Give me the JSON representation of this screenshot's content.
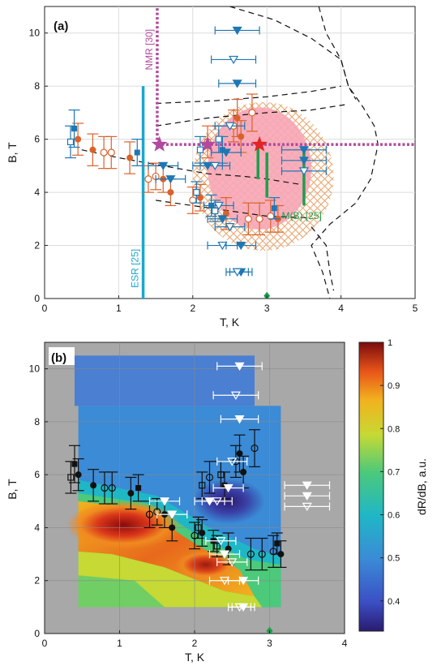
{
  "colors": {
    "orange": "#d9622b",
    "blue": "#1f77b4",
    "teal": "#19a8cf",
    "magenta": "#b04a9f",
    "red": "#e02525",
    "green": "#1e9e4f",
    "pink": "#f7a6b6",
    "hatch": "#e8a46a",
    "gray_bg": "#a8a8a8"
  },
  "chart_data": [
    {
      "type": "scatter",
      "panel_label": "(a)",
      "xlabel": "T, K",
      "ylabel": "B, T",
      "xlim": [
        0,
        5
      ],
      "ylim": [
        0,
        11
      ],
      "xticks": [
        "0",
        "1",
        "2",
        "3",
        "4",
        "5"
      ],
      "yticks": [
        "0",
        "2",
        "4",
        "6",
        "8",
        "10"
      ],
      "grid": true,
      "annotations": {
        "nmr": "NMR [30]",
        "esr": "ESR [25]",
        "mb": "M(B) [25]"
      },
      "series": [
        {
          "kind": "orange-filled-circles",
          "points": [
            {
              "x": 0.45,
              "y": 6.0,
              "err": 0.6
            },
            {
              "x": 0.65,
              "y": 5.6,
              "err": 0.6
            },
            {
              "x": 1.15,
              "y": 5.3,
              "err": 0.6
            },
            {
              "x": 1.6,
              "y": 4.5,
              "err": 0.5
            },
            {
              "x": 2.1,
              "y": 3.8,
              "err": 0.5
            },
            {
              "x": 1.7,
              "y": 4.0,
              "err": 0.5
            },
            {
              "x": 2.6,
              "y": 6.8,
              "err": 0.7
            },
            {
              "x": 2.65,
              "y": 6.1,
              "err": 0.6
            },
            {
              "x": 2.45,
              "y": 3.2,
              "err": 0.6
            },
            {
              "x": 3.15,
              "y": 3.0,
              "err": 0.5
            }
          ]
        },
        {
          "kind": "orange-open-circles",
          "points": [
            {
              "x": 0.9,
              "y": 5.5,
              "err": 0.6
            },
            {
              "x": 0.8,
              "y": 5.5,
              "err": 0.6
            },
            {
              "x": 1.5,
              "y": 4.6,
              "err": 0.5
            },
            {
              "x": 1.4,
              "y": 4.5,
              "err": 0.5
            },
            {
              "x": 2.0,
              "y": 3.7,
              "err": 0.5
            },
            {
              "x": 2.2,
              "y": 5.9,
              "err": 0.6
            },
            {
              "x": 2.55,
              "y": 6.5,
              "err": 0.6
            },
            {
              "x": 2.8,
              "y": 7.0,
              "err": 0.7
            },
            {
              "x": 2.75,
              "y": 3.0,
              "err": 0.6
            },
            {
              "x": 2.9,
              "y": 3.0,
              "err": 0.6
            },
            {
              "x": 3.05,
              "y": 3.1,
              "err": 0.6
            }
          ]
        },
        {
          "kind": "blue-filled-squares",
          "points": [
            {
              "x": 0.4,
              "y": 6.4,
              "err": 0.7
            },
            {
              "x": 1.25,
              "y": 5.5,
              "err": 0.5
            },
            {
              "x": 2.4,
              "y": 5.6,
              "err": 0.5
            },
            {
              "x": 2.25,
              "y": 3.5,
              "err": 0.4
            },
            {
              "x": 3.1,
              "y": 3.4,
              "err": 0.4
            }
          ]
        },
        {
          "kind": "blue-open-squares",
          "points": [
            {
              "x": 0.35,
              "y": 5.9,
              "err": 0.6
            },
            {
              "x": 2.1,
              "y": 5.6,
              "err": 0.5
            },
            {
              "x": 2.35,
              "y": 6.0,
              "err": 0.5
            },
            {
              "x": 2.3,
              "y": 3.3,
              "err": 0.4
            },
            {
              "x": 2.05,
              "y": 4.0,
              "err": 0.4
            }
          ]
        },
        {
          "kind": "blue-filled-triangles",
          "points": [
            {
              "x": 2.6,
              "y": 10.1,
              "xerr": 0.3
            },
            {
              "x": 2.6,
              "y": 8.1,
              "xerr": 0.25
            },
            {
              "x": 3.5,
              "y": 5.6,
              "xerr": 0.3
            },
            {
              "x": 3.5,
              "y": 5.2,
              "xerr": 0.3
            },
            {
              "x": 2.45,
              "y": 5.5,
              "xerr": 0.2
            },
            {
              "x": 2.2,
              "y": 5.0,
              "xerr": 0.2
            },
            {
              "x": 1.6,
              "y": 5.0,
              "xerr": 0.2
            },
            {
              "x": 1.7,
              "y": 4.5,
              "xerr": 0.2
            },
            {
              "x": 2.4,
              "y": 3.0,
              "xerr": 0.2
            },
            {
              "x": 2.65,
              "y": 2.0,
              "xerr": 0.2
            },
            {
              "x": 2.65,
              "y": 1.0,
              "xerr": 0.15
            }
          ]
        },
        {
          "kind": "blue-open-triangles",
          "points": [
            {
              "x": 2.55,
              "y": 9.0,
              "xerr": 0.3
            },
            {
              "x": 2.5,
              "y": 6.5,
              "xerr": 0.2
            },
            {
              "x": 3.5,
              "y": 4.8,
              "xerr": 0.3
            },
            {
              "x": 2.3,
              "y": 5.0,
              "xerr": 0.2
            },
            {
              "x": 2.35,
              "y": 3.5,
              "xerr": 0.2
            },
            {
              "x": 2.5,
              "y": 2.7,
              "xerr": 0.2
            },
            {
              "x": 2.4,
              "y": 2.0,
              "xerr": 0.2
            },
            {
              "x": 2.6,
              "y": 1.0,
              "xerr": 0.15
            }
          ]
        },
        {
          "kind": "stars",
          "points": [
            {
              "x": 1.55,
              "y": 5.8,
              "color": "magenta"
            },
            {
              "x": 2.2,
              "y": 5.8,
              "color": "magenta"
            },
            {
              "x": 2.9,
              "y": 5.8,
              "color": "red"
            }
          ]
        }
      ],
      "lines": {
        "nmr_vertical_x": 1.52,
        "nmr_vertical_y": [
          5.8,
          11.0
        ],
        "nmr_horizontal_y": 5.8,
        "nmr_horizontal_x": [
          1.52,
          5.0
        ],
        "esr_x": 1.33,
        "esr_y": [
          0.0,
          8.0
        ],
        "mb_segments": [
          {
            "x": 2.88,
            "y": [
              4.5,
              5.8
            ]
          },
          {
            "x": 3.0,
            "y": [
              3.8,
              5.5
            ]
          },
          {
            "x": 3.5,
            "y": [
              3.5,
              5.6
            ]
          }
        ]
      },
      "dashed_boundaries": [
        [
          [
            0.5,
            5.6
          ],
          [
            1.0,
            5.3
          ],
          [
            1.6,
            5.0
          ],
          [
            2.2,
            4.7
          ],
          [
            2.7,
            4.6
          ],
          [
            3.0,
            4.5
          ],
          [
            3.45,
            4.3
          ]
        ],
        [
          [
            1.5,
            3.7
          ],
          [
            2.0,
            3.5
          ],
          [
            2.5,
            3.3
          ],
          [
            3.0,
            3.1
          ],
          [
            3.5,
            3.05
          ],
          [
            3.6,
            3.0
          ]
        ],
        [
          [
            1.5,
            7.35
          ],
          [
            2.3,
            7.45
          ],
          [
            3.0,
            7.6
          ],
          [
            3.6,
            7.8
          ],
          [
            4.0,
            8.0
          ]
        ],
        [
          [
            1.5,
            6.5
          ],
          [
            2.2,
            6.8
          ],
          [
            3.0,
            7.0
          ],
          [
            3.6,
            7.1
          ],
          [
            4.05,
            7.3
          ]
        ],
        [
          [
            2.5,
            11.0
          ],
          [
            3.1,
            10.5
          ],
          [
            3.6,
            9.8
          ],
          [
            4.0,
            9.0
          ],
          [
            4.1,
            8.0
          ],
          [
            4.3,
            7.2
          ],
          [
            4.45,
            6.5
          ],
          [
            4.5,
            5.8
          ],
          [
            4.4,
            4.5
          ],
          [
            4.2,
            3.6
          ],
          [
            3.85,
            2.8
          ],
          [
            3.6,
            2.0
          ],
          [
            3.75,
            1.0
          ],
          [
            3.85,
            0.0
          ]
        ],
        [
          [
            3.7,
            11.0
          ],
          [
            3.8,
            10.0
          ],
          [
            4.0,
            9.0
          ],
          [
            4.1,
            8.0
          ],
          [
            4.2,
            7.5
          ]
        ],
        [
          [
            3.6,
            2.7
          ],
          [
            3.8,
            2.0
          ],
          [
            3.85,
            1.0
          ],
          [
            3.9,
            0.3
          ]
        ]
      ],
      "pink_region": {
        "cx": 2.9,
        "cy": 4.9,
        "rx": 0.7,
        "ry": 2.3
      },
      "hatch_region": {
        "cx": 2.95,
        "cy": 4.6,
        "rx": 0.95,
        "ry": 2.8
      },
      "green_marker": {
        "x": 3.0,
        "y": 0.1
      }
    },
    {
      "type": "heatmap",
      "panel_label": "(b)",
      "xlabel": "T, K",
      "ylabel": "B, T",
      "xlim": [
        0,
        4
      ],
      "ylim": [
        0,
        11
      ],
      "xticks": [
        "0",
        "1",
        "2",
        "3",
        "4"
      ],
      "yticks": [
        "0",
        "2",
        "4",
        "6",
        "8",
        "10"
      ],
      "colorbar": {
        "label": "dR/dB, a.u.",
        "ticks": [
          "0.4",
          "0.5",
          "0.6",
          "0.7",
          "0.8",
          "0.9",
          "1"
        ],
        "range": [
          0.33,
          1.0
        ]
      },
      "data_region": {
        "x": [
          0.45,
          3.15
        ],
        "y": [
          1.0,
          10.5
        ],
        "top_strip": {
          "x": [
            0.4,
            2.8
          ],
          "y": [
            8.6,
            10.5
          ]
        }
      },
      "green_marker": {
        "x": 3.0,
        "y": 0.1
      }
    }
  ]
}
